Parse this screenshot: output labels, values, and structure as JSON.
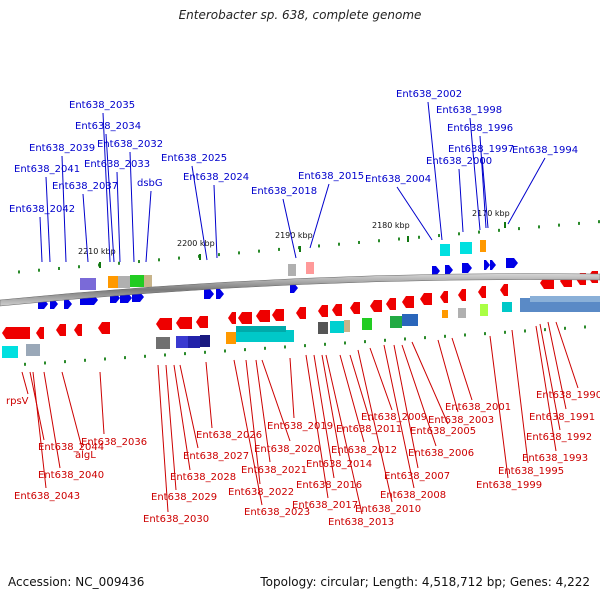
{
  "title": "Enterobacter sp. 638, complete genome",
  "footer": {
    "accession": "Accession: NC_009436",
    "stats": "Topology: circular; Length: 4,518,712 bp; Genes: 4,222"
  },
  "colors": {
    "forward_gene": "#0000e6",
    "reverse_gene": "#ee0000",
    "forward_label": "#0000cc",
    "reverse_label": "#cc0000",
    "backbone": "#808080"
  },
  "scale_ticks": [
    "2170 kbp",
    "2180 kbp",
    "2190 kbp",
    "2200 kbp",
    "2210 kbp"
  ],
  "top_labels": [
    "Ent638_2042",
    "Ent638_2041",
    "Ent638_2039",
    "Ent638_2037",
    "Ent638_2035",
    "Ent638_2034",
    "Ent638_2033",
    "Ent638_2032",
    "dsbG",
    "Ent638_2025",
    "Ent638_2024",
    "Ent638_2018",
    "Ent638_2015",
    "Ent638_2004",
    "Ent638_2002",
    "Ent638_2000",
    "Ent638_1998",
    "Ent638_1996",
    "Ent638_1997",
    "Ent638_1994"
  ],
  "bottom_labels": [
    "rpsV",
    "Ent638_2044",
    "Ent638_2043",
    "Ent638_2040",
    "algL",
    "Ent638_2036",
    "Ent638_2030",
    "Ent638_2029",
    "Ent638_2028",
    "Ent638_2027",
    "Ent638_2026",
    "Ent638_2023",
    "Ent638_2022",
    "Ent638_2021",
    "Ent638_2020",
    "Ent638_2019",
    "Ent638_2017",
    "Ent638_2016",
    "Ent638_2014",
    "Ent638_2013",
    "Ent638_2012",
    "Ent638_2011",
    "Ent638_2010",
    "Ent638_2009",
    "Ent638_2008",
    "Ent638_2007",
    "Ent638_2006",
    "Ent638_2005",
    "Ent638_2003",
    "Ent638_2001",
    "Ent638_1999",
    "Ent638_1995",
    "Ent638_1993",
    "Ent638_1992",
    "Ent638_1991",
    "Ent638_1990"
  ]
}
